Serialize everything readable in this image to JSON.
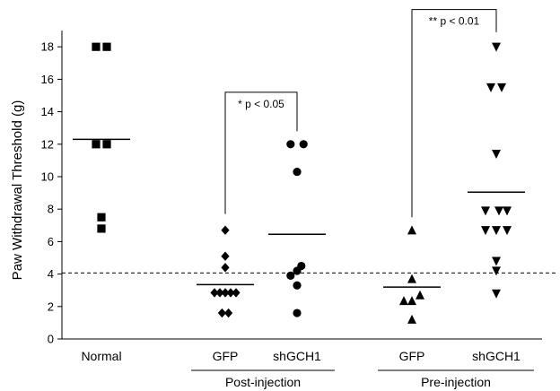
{
  "chart_data": {
    "type": "scatter",
    "title": "",
    "ylabel": "Paw Withdrawal Threshold (g)",
    "xlabel": "",
    "ylim": [
      0,
      19
    ],
    "yticks": [
      0,
      2,
      4,
      6,
      8,
      10,
      12,
      14,
      16,
      18
    ],
    "grid": false,
    "threshold_line": 4.07,
    "categories": [
      "Normal",
      "GFP",
      "shGCH1",
      "GFP",
      "shGCH1"
    ],
    "group_labels": [
      {
        "label": "Post-injection",
        "categories": [
          1,
          2
        ]
      },
      {
        "label": "Pre-injection",
        "categories": [
          3,
          4
        ]
      }
    ],
    "series": [
      {
        "category": "Normal",
        "marker": "square",
        "mean": 12.3,
        "points": [
          {
            "x": -0.1,
            "y": 18.0
          },
          {
            "x": 0.1,
            "y": 18.0
          },
          {
            "x": -0.1,
            "y": 12.0
          },
          {
            "x": 0.1,
            "y": 12.0
          },
          {
            "x": 0,
            "y": 7.5
          },
          {
            "x": 0,
            "y": 6.8
          }
        ]
      },
      {
        "category": "GFP",
        "marker": "diamond",
        "mean": 3.35,
        "points": [
          {
            "x": 0,
            "y": 6.7
          },
          {
            "x": 0,
            "y": 5.1
          },
          {
            "x": 0,
            "y": 4.4
          },
          {
            "x": -0.2,
            "y": 2.85
          },
          {
            "x": -0.1,
            "y": 2.85
          },
          {
            "x": 0,
            "y": 2.85
          },
          {
            "x": 0.1,
            "y": 2.85
          },
          {
            "x": 0.2,
            "y": 2.85
          },
          {
            "x": -0.06,
            "y": 1.6
          },
          {
            "x": 0.06,
            "y": 1.6
          }
        ]
      },
      {
        "category": "shGCH1",
        "marker": "circle",
        "mean": 6.45,
        "points": [
          {
            "x": -0.12,
            "y": 12.0
          },
          {
            "x": 0.12,
            "y": 12.0
          },
          {
            "x": 0,
            "y": 10.3
          },
          {
            "x": 0.08,
            "y": 4.5
          },
          {
            "x": -0.12,
            "y": 3.9
          },
          {
            "x": 0.0,
            "y": 4.2
          },
          {
            "x": 0,
            "y": 3.3
          },
          {
            "x": 0,
            "y": 1.6
          }
        ]
      },
      {
        "category": "GFP",
        "marker": "triangle-up",
        "mean": 3.2,
        "points": [
          {
            "x": 0,
            "y": 6.7
          },
          {
            "x": 0,
            "y": 3.7
          },
          {
            "x": 0.15,
            "y": 2.7
          },
          {
            "x": -0.15,
            "y": 2.35
          },
          {
            "x": 0,
            "y": 2.35
          },
          {
            "x": 0,
            "y": 1.2
          }
        ]
      },
      {
        "category": "shGCH1",
        "marker": "triangle-down",
        "mean": 9.05,
        "points": [
          {
            "x": 0,
            "y": 18.0
          },
          {
            "x": -0.1,
            "y": 15.5
          },
          {
            "x": 0.1,
            "y": 15.5
          },
          {
            "x": 0,
            "y": 11.4
          },
          {
            "x": -0.2,
            "y": 7.9
          },
          {
            "x": 0.05,
            "y": 7.9
          },
          {
            "x": 0.2,
            "y": 7.9
          },
          {
            "x": -0.2,
            "y": 6.7
          },
          {
            "x": 0.0,
            "y": 6.7
          },
          {
            "x": 0.2,
            "y": 6.7
          },
          {
            "x": 0,
            "y": 4.8
          },
          {
            "x": 0,
            "y": 4.2
          },
          {
            "x": 0,
            "y": 2.8
          }
        ]
      }
    ],
    "annotations": [
      {
        "text": "* p < 0.05",
        "from": 1,
        "to": 2,
        "y": 15.2,
        "left_drop_to": 7.7,
        "right_drop_to": 12.8
      },
      {
        "text": "** p < 0.01",
        "from": 3,
        "to": 4,
        "y": 20.3,
        "left_drop_to": 7.5,
        "right_drop_to": 18.9
      }
    ]
  }
}
